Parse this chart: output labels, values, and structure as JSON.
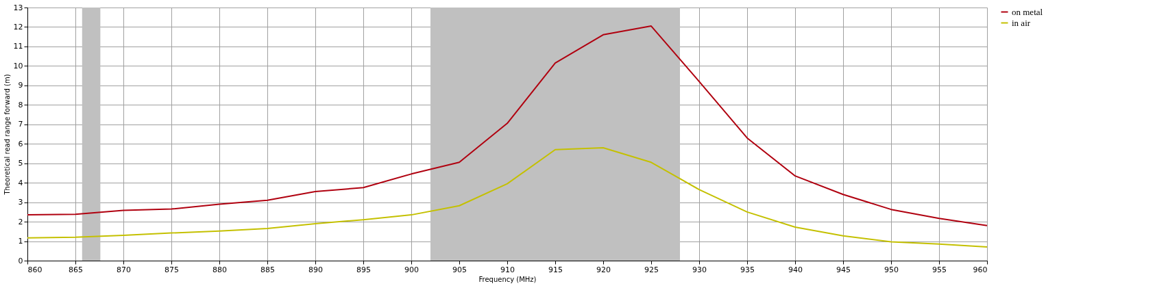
{
  "chart_data": {
    "type": "line",
    "xlabel": "Frequency (MHz)",
    "ylabel": "Theoretical read range forward (m)",
    "x": [
      860,
      865,
      870,
      875,
      880,
      885,
      890,
      895,
      900,
      905,
      910,
      915,
      920,
      925,
      930,
      935,
      940,
      945,
      950,
      955,
      960
    ],
    "series": [
      {
        "name": "on metal",
        "color": "#b0000f",
        "values": [
          2.35,
          2.38,
          2.58,
          2.65,
          2.9,
          3.1,
          3.55,
          3.75,
          4.45,
          5.05,
          7.05,
          10.15,
          11.6,
          12.05,
          9.2,
          6.3,
          4.35,
          3.4,
          2.63,
          2.17,
          1.8
        ]
      },
      {
        "name": "in air",
        "color": "#c4c000",
        "values": [
          1.17,
          1.2,
          1.3,
          1.42,
          1.52,
          1.65,
          1.9,
          2.1,
          2.35,
          2.82,
          3.95,
          5.7,
          5.8,
          5.05,
          3.65,
          2.5,
          1.72,
          1.27,
          0.97,
          0.85,
          0.7
        ]
      }
    ],
    "bands": [
      {
        "axis": "x",
        "from": 865.7,
        "to": 867.6,
        "color": "#c0c0c0"
      },
      {
        "axis": "x",
        "from": 902,
        "to": 928,
        "color": "#c0c0c0"
      }
    ],
    "xlim": [
      860,
      960
    ],
    "xticks": [
      860,
      865,
      870,
      875,
      880,
      885,
      890,
      895,
      900,
      905,
      910,
      915,
      920,
      925,
      930,
      935,
      940,
      945,
      950,
      955,
      960
    ],
    "ylim": [
      0,
      13
    ],
    "yticks": [
      0,
      1,
      2,
      3,
      4,
      5,
      6,
      7,
      8,
      9,
      10,
      11,
      12,
      13
    ],
    "grid": true,
    "legend": "top right",
    "marker": "none",
    "line_style": "solid"
  }
}
